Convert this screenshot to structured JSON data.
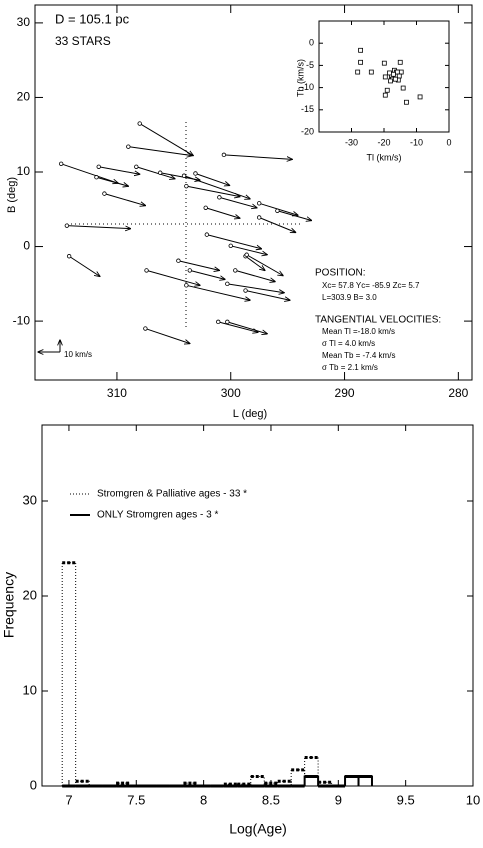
{
  "chart_data": [
    {
      "type": "vector",
      "xlabel": "L (deg)",
      "ylabel": "B (deg)",
      "xlim": [
        317.2,
        278.8
      ],
      "ylim": [
        -17.9,
        32.4
      ],
      "xticks": [
        310,
        300,
        290,
        280
      ],
      "yticks": [
        30,
        20,
        10,
        0,
        -10
      ],
      "x": [
        308.0,
        309.0,
        314.9,
        311.6,
        311.8,
        308.3,
        306.2,
        311.1,
        304.1,
        303.9,
        303.1,
        300.6,
        301.0,
        302.2,
        297.5,
        295.9,
        297.5,
        314.4,
        302.1,
        300.0,
        314.2,
        304.6,
        298.7,
        298.6,
        303.6,
        299.6,
        307.4,
        303.9,
        300.3,
        298.7,
        301.1,
        300.3,
        307.5
      ],
      "y": [
        16.5,
        13.4,
        11.1,
        10.7,
        9.3,
        10.7,
        9.9,
        7.1,
        9.5,
        8.1,
        9.8,
        12.3,
        6.6,
        5.2,
        5.8,
        4.8,
        3.9,
        2.8,
        1.6,
        0.1,
        -1.3,
        -1.9,
        -1.3,
        -1.1,
        -3.2,
        -3.2,
        -3.2,
        -5.2,
        -5.0,
        -5.9,
        -10.1,
        -10.1,
        -11.0
      ],
      "x_end": [
        303.3,
        303.4,
        309.9,
        308.0,
        309.0,
        304.9,
        302.7,
        307.5,
        298.3,
        299.2,
        300.1,
        294.6,
        297.7,
        299.2,
        294.1,
        292.9,
        294.3,
        308.8,
        297.3,
        296.8,
        311.5,
        301.0,
        297.0,
        295.4,
        300.5,
        296.1,
        302.7,
        298.3,
        295.3,
        294.8,
        297.6,
        296.8,
        303.6
      ],
      "y_end": [
        12.2,
        12.2,
        8.5,
        9.7,
        8.1,
        9.1,
        8.9,
        5.5,
        6.4,
        6.7,
        8.2,
        11.7,
        5.2,
        3.8,
        4.2,
        3.5,
        1.9,
        2.4,
        -0.3,
        -1.1,
        -4.0,
        -3.2,
        -3.2,
        -3.9,
        -4.4,
        -4.7,
        -5.2,
        -7.2,
        -6.2,
        -7.2,
        -11.5,
        -11.7,
        -13.0
      ],
      "annotations": [
        "D = 105.1 pc",
        "33 STARS",
        "POSITION:",
        "Xc=  57.8 Yc= -85.9 Zc=    5.7",
        "L=303.9  B=   3.0",
        "TANGENTIAL VELOCITIES:",
        "Mean Tl =-18.0 km/s",
        "σ Tl =   4.0 km/s",
        "Mean Tb = -7.4 km/s",
        "σ Tb =   2.1 km/s"
      ],
      "scale_label": "10 km/s"
    },
    {
      "type": "scatter",
      "xlabel": "Tl (km/s)",
      "ylabel": "Tb (km/s)",
      "xlim": [
        -40,
        0
      ],
      "ylim": [
        -20,
        5
      ],
      "xticks": [
        -30,
        -20,
        -10,
        0
      ],
      "yticks": [
        0,
        -5,
        -10,
        -15,
        -20
      ],
      "x": [
        -27.2,
        -27.2,
        -28.1,
        -23.9,
        -19.9,
        -15.0,
        -14.7,
        -17.7,
        -16.8,
        -16.2,
        -18.3,
        -17.4,
        -19.6,
        -19.0,
        -19.6,
        -15.9,
        -15.3,
        -14.1,
        -13.1,
        -8.9,
        -15.6,
        -17.1,
        -16.5,
        -18.0
      ],
      "y": [
        -1.6,
        -4.3,
        -6.5,
        -6.5,
        -4.5,
        -4.3,
        -6.5,
        -7.4,
        -6.1,
        -6.5,
        -6.7,
        -8.1,
        -7.6,
        -10.6,
        -11.7,
        -6.5,
        -7.4,
        -10.1,
        -13.3,
        -12.1,
        -8.3,
        -7.0,
        -8.1,
        -8.5
      ]
    },
    {
      "type": "histogram",
      "xlabel": "Log(Age)",
      "ylabel": "Frequency",
      "xlim": [
        6.8,
        10
      ],
      "ylim": [
        0,
        38
      ],
      "xticks": [
        7,
        7.5,
        8,
        8.5,
        9,
        9.5,
        10
      ],
      "yticks": [
        0,
        10,
        20,
        30
      ],
      "bins": [
        6.95,
        7.05,
        7.15,
        7.25,
        7.35,
        7.45,
        7.55,
        7.65,
        7.75,
        7.85,
        7.95,
        8.05,
        8.15,
        8.25,
        8.35,
        8.45,
        8.55,
        8.65,
        8.75,
        8.85,
        8.95,
        9.05,
        9.15,
        9.25
      ],
      "series": [
        {
          "name": "Stromgren & Palliative ages - 33 *",
          "color": "#000000",
          "linestyle": "dotted",
          "values": [
            23.5,
            0.5,
            0,
            0,
            0.3,
            0,
            0,
            0,
            0,
            0.3,
            0,
            0,
            0.2,
            0.2,
            1.0,
            0.3,
            0.5,
            1.7,
            3.0,
            0.4,
            0,
            1.0,
            1.0
          ]
        },
        {
          "name": "ONLY Stromgren ages - 3 *",
          "color": "#000000",
          "linestyle": "solid",
          "values": [
            0,
            0,
            0,
            0,
            0,
            0,
            0,
            0,
            0,
            0,
            0,
            0,
            0,
            0,
            0,
            0,
            0,
            0,
            1.0,
            0,
            0,
            1.0,
            1.0
          ]
        }
      ]
    }
  ]
}
